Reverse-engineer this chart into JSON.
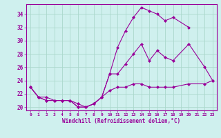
{
  "xlabel": "Windchill (Refroidissement éolien,°C)",
  "bg_color": "#cff0ee",
  "line_color": "#990099",
  "grid_color": "#aad8cc",
  "xlim": [
    -0.5,
    23.5
  ],
  "ylim": [
    19.5,
    35.5
  ],
  "yticks": [
    20,
    22,
    24,
    26,
    28,
    30,
    32,
    34
  ],
  "xticks": [
    0,
    1,
    2,
    3,
    4,
    5,
    6,
    7,
    8,
    9,
    10,
    11,
    12,
    13,
    14,
    15,
    16,
    17,
    18,
    19,
    20,
    21,
    22,
    23
  ],
  "curves": [
    {
      "x": [
        0,
        1,
        2,
        3,
        4,
        5,
        6,
        7,
        8,
        9,
        10,
        11,
        12,
        13,
        14,
        15,
        16,
        17,
        18,
        20
      ],
      "y": [
        23.0,
        21.5,
        21.0,
        21.0,
        21.0,
        21.0,
        20.0,
        20.0,
        20.5,
        21.5,
        25.0,
        29.0,
        31.5,
        33.5,
        35.0,
        34.5,
        34.0,
        33.0,
        33.5,
        32.0
      ]
    },
    {
      "x": [
        0,
        1,
        2,
        3,
        4,
        5,
        6,
        7,
        8,
        9,
        10,
        11,
        12,
        13,
        14,
        15,
        16,
        17,
        18,
        20,
        22,
        23
      ],
      "y": [
        23.0,
        21.5,
        21.0,
        21.0,
        21.0,
        21.0,
        20.0,
        20.0,
        20.5,
        21.5,
        25.0,
        25.0,
        26.5,
        28.0,
        29.5,
        27.0,
        28.5,
        27.5,
        27.0,
        29.5,
        26.0,
        24.0
      ]
    },
    {
      "x": [
        0,
        1,
        2,
        3,
        4,
        5,
        6,
        7,
        8,
        9,
        10,
        11,
        12,
        13,
        14,
        15,
        16,
        17,
        18,
        20,
        22,
        23
      ],
      "y": [
        23.0,
        21.5,
        21.5,
        21.0,
        21.0,
        21.0,
        20.5,
        20.0,
        20.5,
        21.5,
        22.5,
        23.0,
        23.0,
        23.5,
        23.5,
        23.0,
        23.0,
        23.0,
        23.0,
        23.5,
        23.5,
        24.0
      ]
    }
  ]
}
